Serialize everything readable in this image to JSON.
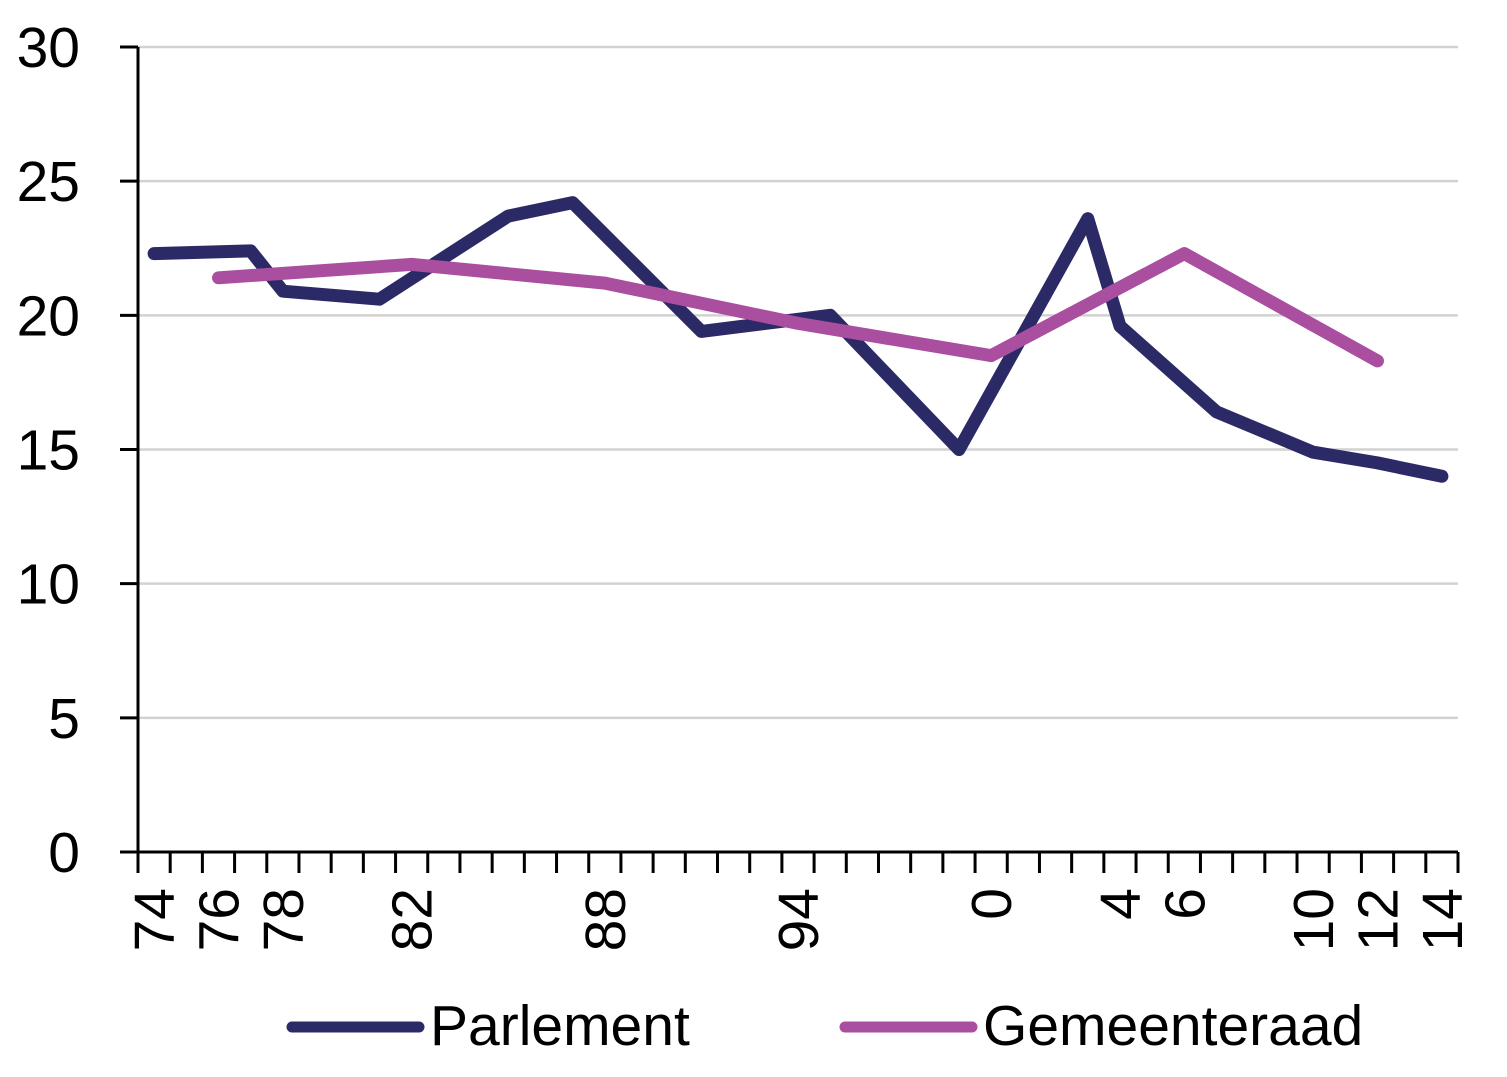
{
  "chart_data": {
    "type": "line",
    "title": "",
    "x_axis": {
      "kind": "category-years",
      "start_year": 1974,
      "end_year": 2014,
      "tick_every_years": 1,
      "labels": [
        {
          "text": "74",
          "year": 1974
        },
        {
          "text": "76",
          "year": 1976
        },
        {
          "text": "78",
          "year": 1978
        },
        {
          "text": "82",
          "year": 1982
        },
        {
          "text": "88",
          "year": 1988
        },
        {
          "text": "94",
          "year": 1994
        },
        {
          "text": "0",
          "year": 2000
        },
        {
          "text": "4",
          "year": 2004
        },
        {
          "text": "6",
          "year": 2006
        },
        {
          "text": "10",
          "year": 2010
        },
        {
          "text": "12",
          "year": 2012
        },
        {
          "text": "14",
          "year": 2014
        }
      ]
    },
    "y_axis": {
      "min": 0,
      "max": 30,
      "tick_step": 5,
      "tick_labels": [
        "0",
        "5",
        "10",
        "15",
        "20",
        "25",
        "30"
      ]
    },
    "grid": true,
    "legend_position": "bottom-center",
    "series": [
      {
        "name": "Parlement",
        "color": "#2b2a67",
        "points": [
          [
            1974,
            22.3
          ],
          [
            1977,
            22.4
          ],
          [
            1978,
            20.9
          ],
          [
            1981,
            20.6
          ],
          [
            1985,
            23.7
          ],
          [
            1987,
            24.2
          ],
          [
            1991,
            19.4
          ],
          [
            1995,
            20.0
          ],
          [
            1999,
            15.0
          ],
          [
            2003,
            23.6
          ],
          [
            2004,
            19.6
          ],
          [
            2007,
            16.4
          ],
          [
            2010,
            14.9
          ],
          [
            2012,
            14.5
          ],
          [
            2014,
            14.0
          ]
        ]
      },
      {
        "name": "Gemeenteraad",
        "color": "#aa4fa0",
        "points": [
          [
            1976,
            21.4
          ],
          [
            1982,
            21.9
          ],
          [
            1988,
            21.2
          ],
          [
            1994,
            19.7
          ],
          [
            2000,
            18.5
          ],
          [
            2006,
            22.3
          ],
          [
            2012,
            18.3
          ]
        ]
      }
    ],
    "colors": {
      "background": "#ffffff",
      "gridline": "#d2d2d2",
      "axis": "#000000",
      "text": "#000000"
    }
  }
}
